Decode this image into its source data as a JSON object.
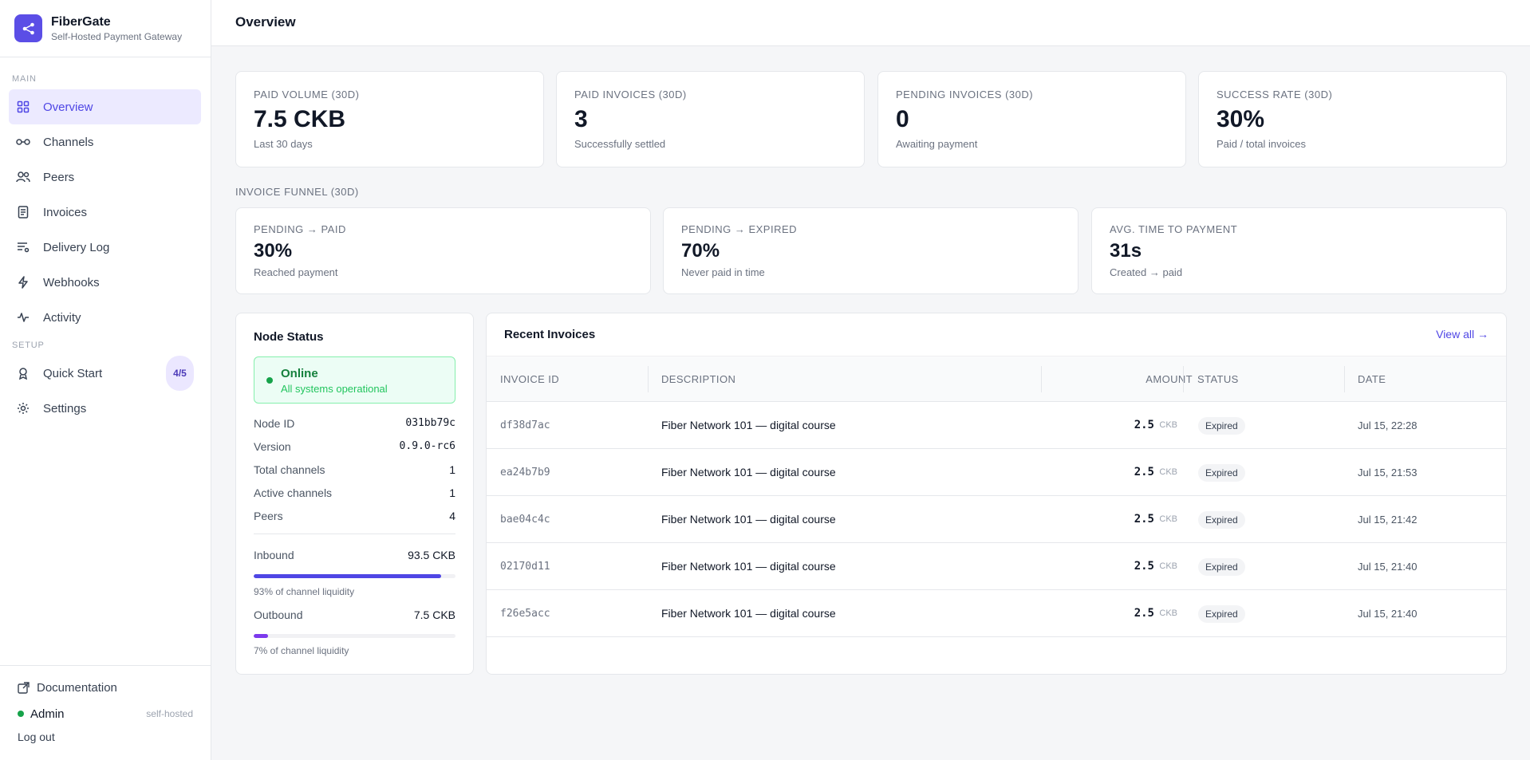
{
  "app": {
    "name": "FiberGate",
    "tagline": "Self-Hosted Payment Gateway",
    "accent": "#4f46e5"
  },
  "sidebar": {
    "main_label": "MAIN",
    "setup_label": "SETUP",
    "main_items": [
      {
        "label": "Overview",
        "icon": "grid-icon"
      },
      {
        "label": "Channels",
        "icon": "link-icon"
      },
      {
        "label": "Peers",
        "icon": "users-icon"
      },
      {
        "label": "Invoices",
        "icon": "document-icon"
      },
      {
        "label": "Delivery Log",
        "icon": "list-filter-icon"
      },
      {
        "label": "Webhooks",
        "icon": "lightning-icon"
      },
      {
        "label": "Activity",
        "icon": "pulse-icon"
      }
    ],
    "setup_items": [
      {
        "label": "Quick Start",
        "icon": "rocket-icon",
        "badge": "4/5"
      },
      {
        "label": "Settings",
        "icon": "gear-icon"
      }
    ],
    "footer": {
      "documentation": "Documentation",
      "user": "Admin",
      "mode": "self-hosted",
      "logout": "Log out"
    }
  },
  "header": {
    "title": "Overview"
  },
  "kpis": [
    {
      "label": "PAID VOLUME (30D)",
      "value": "7.5 CKB",
      "sub": "Last 30 days"
    },
    {
      "label": "PAID INVOICES (30D)",
      "value": "3",
      "sub": "Successfully settled"
    },
    {
      "label": "PENDING INVOICES (30D)",
      "value": "0",
      "sub": "Awaiting payment"
    },
    {
      "label": "SUCCESS RATE (30D)",
      "value": "30%",
      "sub": "Paid / total invoices"
    }
  ],
  "funnel": {
    "heading": "INVOICE FUNNEL (30D)",
    "cards": [
      {
        "label": "PENDING → PAID",
        "value": "30%",
        "sub": "Reached payment"
      },
      {
        "label": "PENDING → EXPIRED",
        "value": "70%",
        "sub": "Never paid in time"
      },
      {
        "label": "AVG. TIME TO PAYMENT",
        "value": "31s",
        "sub": "Created → paid"
      }
    ]
  },
  "node": {
    "title": "Node Status",
    "status": "Online",
    "status_sub": "All systems operational",
    "fields": [
      {
        "key": "Node ID",
        "value": "031bb79c"
      },
      {
        "key": "Version",
        "value": "0.9.0-rc6"
      },
      {
        "key": "Total channels",
        "value": "1"
      },
      {
        "key": "Active channels",
        "value": "1"
      },
      {
        "key": "Peers",
        "value": "4"
      }
    ],
    "inbound": {
      "label": "Inbound",
      "value": "93.5 CKB",
      "pct": 93,
      "note": "93% of channel liquidity"
    },
    "outbound": {
      "label": "Outbound",
      "value": "7.5 CKB",
      "pct": 7,
      "note": "7% of channel liquidity"
    }
  },
  "invoices": {
    "title": "Recent Invoices",
    "view_all": "View all →",
    "columns": [
      "INVOICE ID",
      "DESCRIPTION",
      "AMOUNT",
      "STATUS",
      "DATE"
    ],
    "rows": [
      {
        "id": "df38d7ac",
        "description": "Fiber Network 101 — digital course",
        "amount": "2.5",
        "unit": "CKB",
        "status": "Expired",
        "date": "Jul 15, 22:28"
      },
      {
        "id": "ea24b7b9",
        "description": "Fiber Network 101 — digital course",
        "amount": "2.5",
        "unit": "CKB",
        "status": "Expired",
        "date": "Jul 15, 21:53"
      },
      {
        "id": "bae04c4c",
        "description": "Fiber Network 101 — digital course",
        "amount": "2.5",
        "unit": "CKB",
        "status": "Expired",
        "date": "Jul 15, 21:42"
      },
      {
        "id": "02170d11",
        "description": "Fiber Network 101 — digital course",
        "amount": "2.5",
        "unit": "CKB",
        "status": "Expired",
        "date": "Jul 15, 21:40"
      },
      {
        "id": "f26e5acc",
        "description": "Fiber Network 101 — digital course",
        "amount": "2.5",
        "unit": "CKB",
        "status": "Expired",
        "date": "Jul 15, 21:40"
      }
    ]
  }
}
